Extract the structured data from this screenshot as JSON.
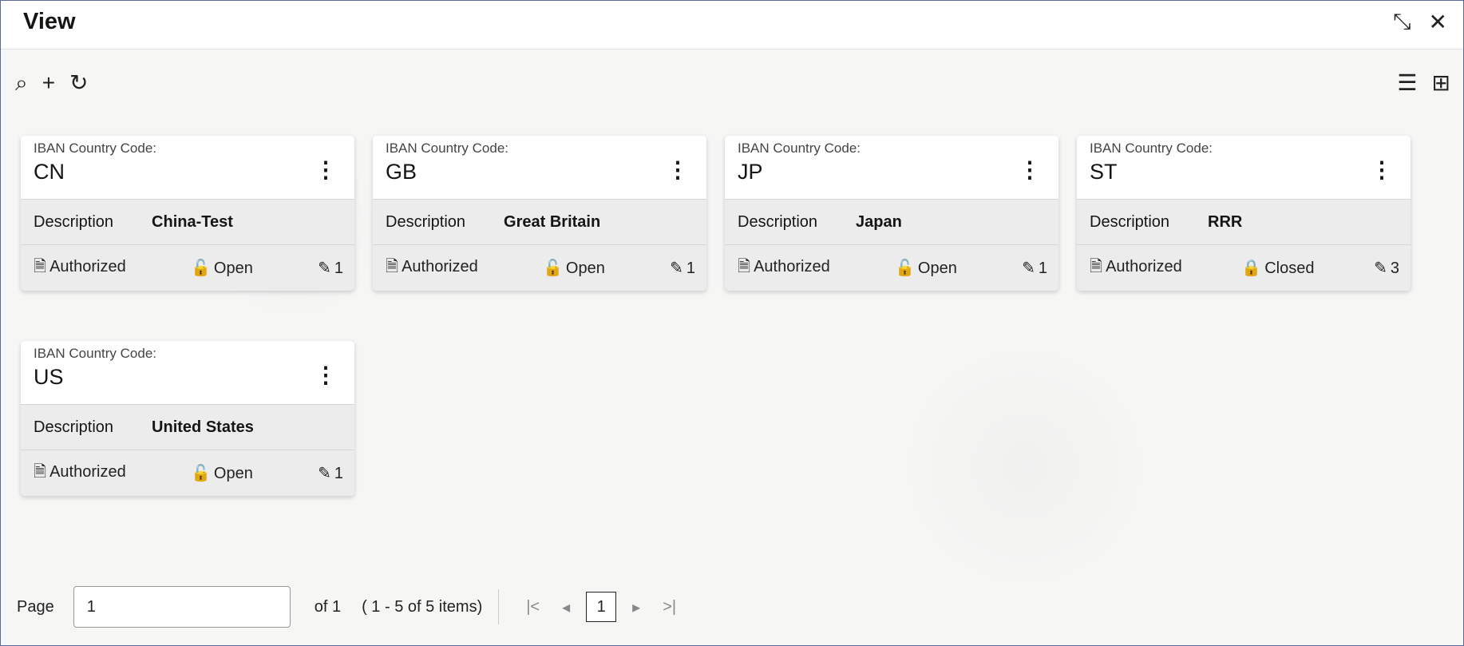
{
  "header": {
    "title": "View"
  },
  "cards": [
    {
      "label": "IBAN Country Code:",
      "code": "CN",
      "desc_label": "Description",
      "desc": "China-Test",
      "auth": "Authorized",
      "lock": "Open",
      "lock_icon": "unlock-icon",
      "mods": "1"
    },
    {
      "label": "IBAN Country Code:",
      "code": "GB",
      "desc_label": "Description",
      "desc": "Great Britain",
      "auth": "Authorized",
      "lock": "Open",
      "lock_icon": "unlock-icon",
      "mods": "1"
    },
    {
      "label": "IBAN Country Code:",
      "code": "JP",
      "desc_label": "Description",
      "desc": "Japan",
      "auth": "Authorized",
      "lock": "Open",
      "lock_icon": "unlock-icon",
      "mods": "1"
    },
    {
      "label": "IBAN Country Code:",
      "code": "ST",
      "desc_label": "Description",
      "desc": "RRR",
      "auth": "Authorized",
      "lock": "Closed",
      "lock_icon": "lock-icon",
      "mods": "3"
    },
    {
      "label": "IBAN Country Code:",
      "code": "US",
      "desc_label": "Description",
      "desc": "United States",
      "auth": "Authorized",
      "lock": "Open",
      "lock_icon": "unlock-icon",
      "mods": "1"
    }
  ],
  "pager": {
    "page_label": "Page",
    "page_value": "1",
    "of": "of 1",
    "range": "( 1 - 5 of 5 items)",
    "current": "1"
  }
}
